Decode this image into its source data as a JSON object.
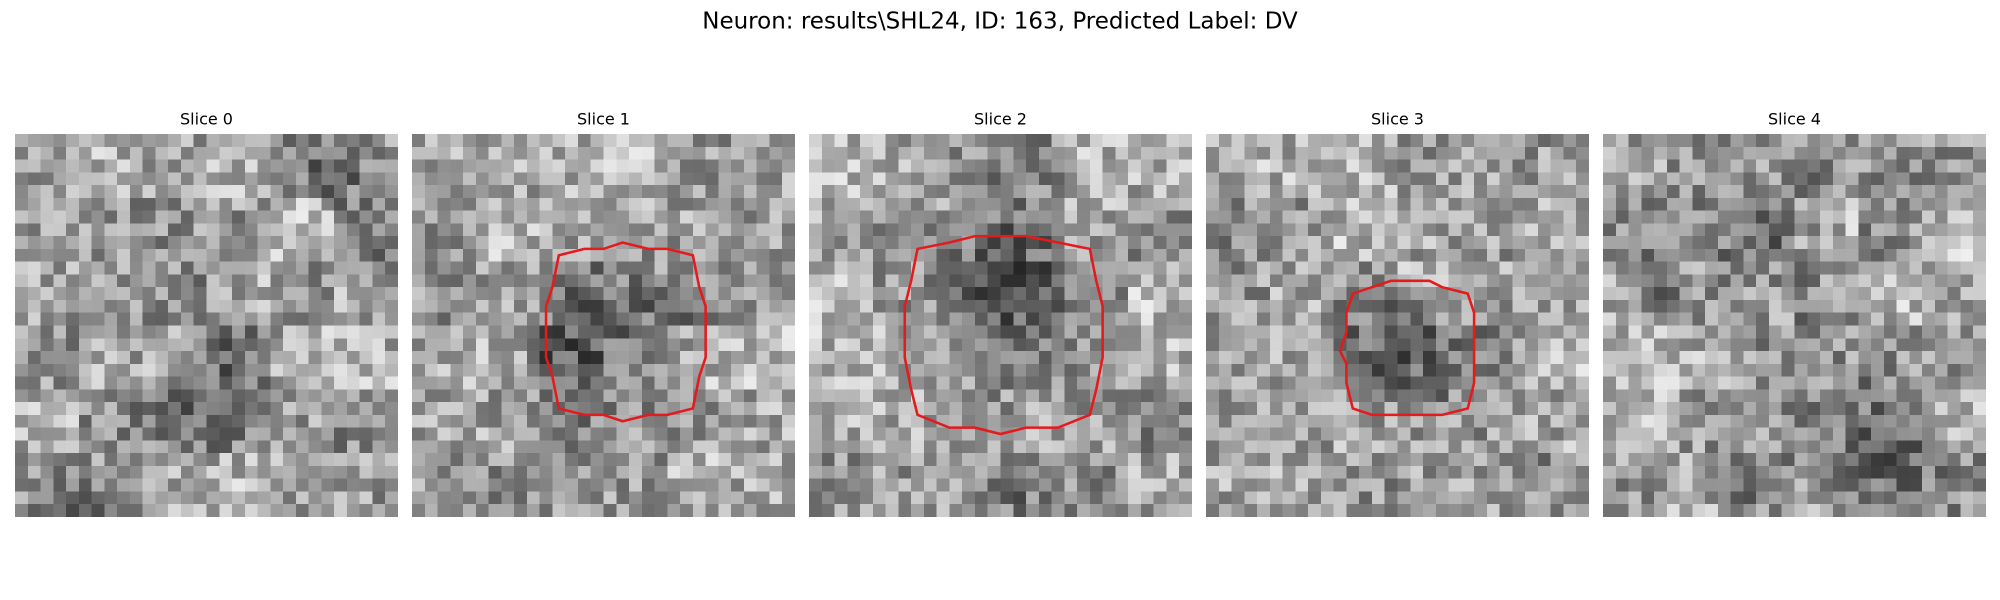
{
  "title": "Neuron: results\\SHL24, ID: 163, Predicted Label: DV",
  "panels": [
    {
      "title": "Slice 0"
    },
    {
      "title": "Slice 1"
    },
    {
      "title": "Slice 2"
    },
    {
      "title": "Slice 3"
    },
    {
      "title": "Slice 4"
    }
  ]
}
